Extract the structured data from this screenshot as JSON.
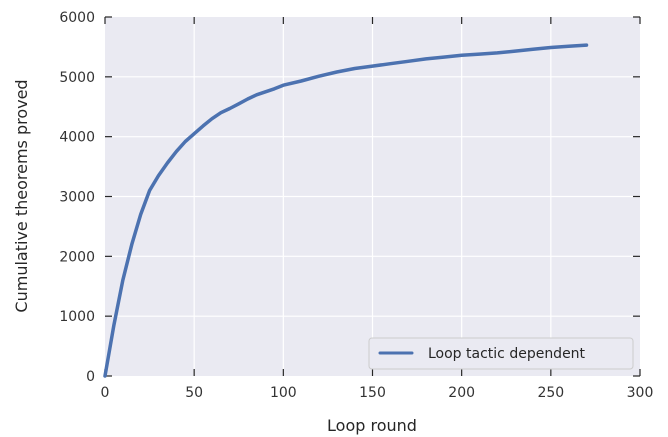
{
  "chart_data": {
    "type": "line",
    "xlabel": "Loop round",
    "ylabel": "Cumulative theorems proved",
    "xlim": [
      0,
      300
    ],
    "ylim": [
      0,
      6000
    ],
    "xticks": [
      0,
      50,
      100,
      150,
      200,
      250,
      300
    ],
    "yticks": [
      0,
      1000,
      2000,
      3000,
      4000,
      5000,
      6000
    ],
    "grid": true,
    "legend_position": "bottom-right",
    "series": [
      {
        "name": "Loop tactic dependent",
        "color": "#4c72b0",
        "x": [
          0,
          5,
          10,
          15,
          20,
          25,
          30,
          35,
          40,
          45,
          50,
          55,
          60,
          65,
          70,
          75,
          80,
          85,
          90,
          95,
          100,
          110,
          120,
          130,
          140,
          150,
          160,
          170,
          180,
          190,
          200,
          210,
          220,
          230,
          240,
          250,
          260,
          270
        ],
        "y": [
          0,
          850,
          1600,
          2200,
          2700,
          3100,
          3350,
          3560,
          3750,
          3920,
          4050,
          4180,
          4300,
          4400,
          4470,
          4550,
          4630,
          4700,
          4750,
          4800,
          4860,
          4930,
          5010,
          5080,
          5140,
          5180,
          5220,
          5260,
          5300,
          5330,
          5360,
          5380,
          5400,
          5430,
          5460,
          5490,
          5510,
          5530
        ]
      }
    ]
  }
}
